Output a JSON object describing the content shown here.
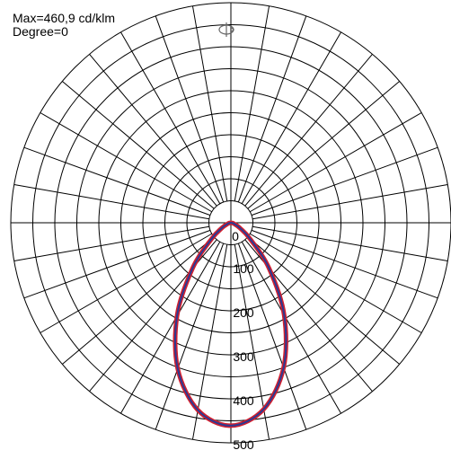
{
  "chart_data": {
    "type": "polar",
    "title_lines": [
      "Max=460,9 cd/klm",
      "Degree=0"
    ],
    "radial_ticks": [
      {
        "value": 0,
        "label": "0"
      },
      {
        "value": 100,
        "label": "100"
      },
      {
        "value": 200,
        "label": "200"
      },
      {
        "value": 300,
        "label": "300"
      },
      {
        "value": 400,
        "label": "400"
      },
      {
        "value": 500,
        "label": "500"
      }
    ],
    "rlim": [
      0,
      500
    ],
    "angle_grid_step_deg": 10,
    "grid": true,
    "series": [
      {
        "values": [
          {
            "angle": -90,
            "r": 0
          },
          {
            "angle": -80,
            "r": 4
          },
          {
            "angle": -70,
            "r": 9
          },
          {
            "angle": -60,
            "r": 23
          },
          {
            "angle": -50,
            "r": 57
          },
          {
            "angle": -40,
            "r": 135
          },
          {
            "angle": -30,
            "r": 242
          },
          {
            "angle": -20,
            "r": 350
          },
          {
            "angle": -10,
            "r": 430
          },
          {
            "angle": 0,
            "r": 461
          },
          {
            "angle": 10,
            "r": 432
          },
          {
            "angle": 20,
            "r": 353
          },
          {
            "angle": 30,
            "r": 245
          },
          {
            "angle": 40,
            "r": 136
          },
          {
            "angle": 50,
            "r": 58
          },
          {
            "angle": 60,
            "r": 23
          },
          {
            "angle": 70,
            "r": 9
          },
          {
            "angle": 80,
            "r": 4
          },
          {
            "angle": 90,
            "r": 0
          }
        ],
        "colors": {
          "outer": "#d2202f",
          "inner": "#2b3a93"
        }
      }
    ],
    "colors": {
      "grid": "#000000",
      "background": "#ffffff"
    },
    "icon": "rotation-icon"
  }
}
